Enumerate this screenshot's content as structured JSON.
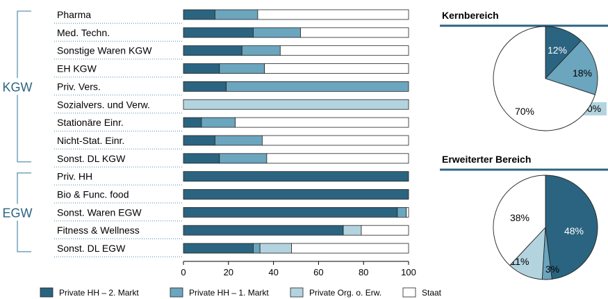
{
  "colors": {
    "dark": "#2b6480",
    "mid": "#6ba5be",
    "light": "#b3d4df",
    "white": "#ffffff",
    "bracket": "#7aa9bd",
    "rule": "#2b6480",
    "dots": "#4a87a6"
  },
  "chart_data": [
    {
      "type": "bar",
      "orientation": "horizontal",
      "stacked": true,
      "groups": [
        {
          "label": "KGW",
          "categories": [
            "Pharma",
            "Med. Techn.",
            "Sonstige Waren KGW",
            "EH KGW",
            "Priv. Vers.",
            "Sozialvers. und Verw.",
            "Stationäre Einr.",
            "Nicht-Stat. Einr.",
            "Sonst. DL KGW"
          ]
        },
        {
          "label": "EGW",
          "categories": [
            "Priv. HH",
            "Bio & Func. food",
            "Sonst. Waren EGW",
            "Fitness & Wellness",
            "Sonst. DL EGW"
          ]
        }
      ],
      "categories": [
        "Pharma",
        "Med. Techn.",
        "Sonstige Waren KGW",
        "EH KGW",
        "Priv. Vers.",
        "Sozialvers. und Verw.",
        "Stationäre Einr.",
        "Nicht-Stat. Einr.",
        "Sonst. DL KGW",
        "Priv. HH",
        "Bio & Func. food",
        "Sonst. Waren EGW",
        "Fitness & Wellness",
        "Sonst. DL EGW"
      ],
      "series": [
        {
          "name": "Private HH – 2. Markt",
          "color_key": "dark",
          "values": [
            14,
            31,
            26,
            16,
            19,
            0,
            8,
            14,
            16,
            100,
            100,
            95,
            71,
            31
          ]
        },
        {
          "name": "Private HH – 1. Markt",
          "color_key": "mid",
          "values": [
            19,
            21,
            17,
            20,
            81,
            0,
            15,
            21,
            21,
            0,
            0,
            4,
            0,
            3
          ]
        },
        {
          "name": "Private Org. o. Erw.",
          "color_key": "light",
          "values": [
            0,
            0,
            0,
            0,
            0,
            100,
            0,
            0,
            0,
            0,
            0,
            0,
            8,
            14
          ]
        },
        {
          "name": "Staat",
          "color_key": "white",
          "values": [
            67,
            48,
            57,
            64,
            0,
            0,
            77,
            65,
            63,
            0,
            0,
            1,
            21,
            52
          ]
        }
      ],
      "xlim": [
        0,
        100
      ],
      "xticks": [
        0,
        20,
        40,
        60,
        80,
        100
      ],
      "legend_position": "bottom"
    },
    {
      "type": "pie",
      "title": "Kernbereich",
      "slices": [
        {
          "label": "12%",
          "value": 12,
          "color_key": "dark"
        },
        {
          "label": "18%",
          "value": 18,
          "color_key": "mid"
        },
        {
          "label": "0%",
          "value": 0,
          "color_key": "light"
        },
        {
          "label": "70%",
          "value": 70,
          "color_key": "white"
        }
      ]
    },
    {
      "type": "pie",
      "title": "Erweiterter Bereich",
      "slices": [
        {
          "label": "48%",
          "value": 48,
          "color_key": "dark"
        },
        {
          "label": "3%",
          "value": 3,
          "color_key": "mid"
        },
        {
          "label": "11%",
          "value": 11,
          "color_key": "light"
        },
        {
          "label": "38%",
          "value": 38,
          "color_key": "white"
        }
      ]
    }
  ]
}
